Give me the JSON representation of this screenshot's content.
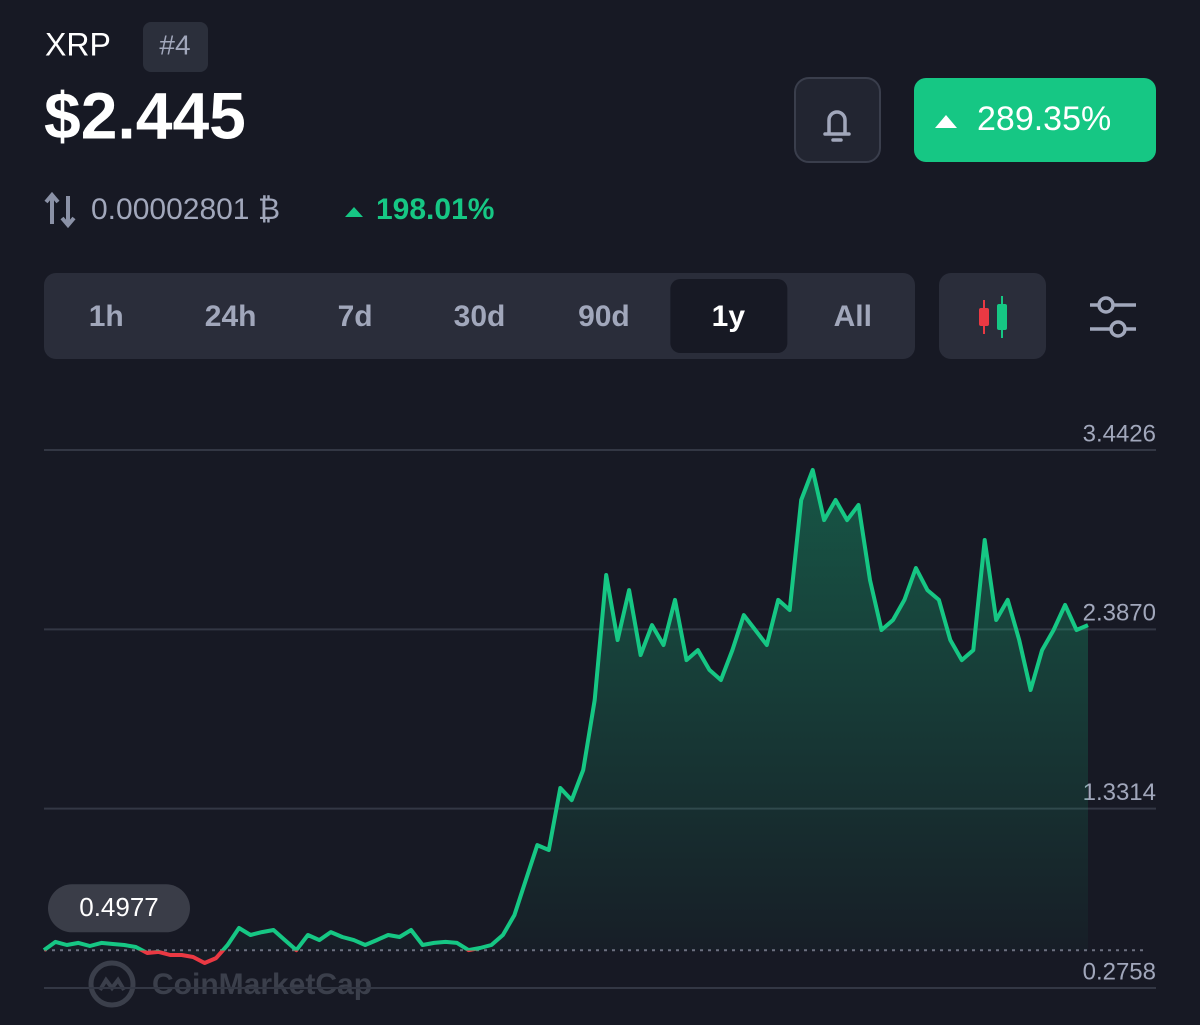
{
  "header": {
    "symbol": "XRP",
    "rank": "#4",
    "price": "$2.445",
    "btc_price": "0.00002801 ₿",
    "btc_change": "198.01%",
    "change": "289.35%"
  },
  "controls": {
    "ranges": [
      "1h",
      "24h",
      "7d",
      "30d",
      "90d",
      "1y",
      "All"
    ],
    "active": "1y"
  },
  "chart_data": {
    "type": "line",
    "watermark": "CoinMarketCap",
    "values": [
      0.499,
      0.547,
      0.529,
      0.541,
      0.523,
      0.541,
      0.535,
      0.529,
      0.517,
      0.482,
      0.488,
      0.47,
      0.47,
      0.458,
      0.423,
      0.452,
      0.529,
      0.629,
      0.588,
      0.605,
      0.617,
      0.558,
      0.499,
      0.588,
      0.558,
      0.605,
      0.576,
      0.558,
      0.529,
      0.558,
      0.588,
      0.576,
      0.617,
      0.529,
      0.541,
      0.547,
      0.541,
      0.499,
      0.511,
      0.529,
      0.588,
      0.705,
      0.911,
      1.117,
      1.088,
      1.453,
      1.382,
      1.559,
      1.971,
      2.707,
      2.324,
      2.618,
      2.236,
      2.412,
      2.295,
      2.56,
      2.206,
      2.265,
      2.148,
      2.089,
      2.265,
      2.471,
      2.383,
      2.295,
      2.56,
      2.501,
      3.148,
      3.325,
      3.03,
      3.148,
      3.03,
      3.119,
      2.677,
      2.383,
      2.442,
      2.56,
      2.748,
      2.618,
      2.56,
      2.324,
      2.206,
      2.265,
      2.913,
      2.442,
      2.56,
      2.324,
      2.03,
      2.265,
      2.383,
      2.53,
      2.383,
      2.412
    ],
    "baseline": 0.4977,
    "up_color": "#16c784",
    "down_color": "#ea3943",
    "ylim": [
      0.2758,
      3.4426
    ],
    "yticks": [
      0.2758,
      1.3314,
      {
        "value": 2.387,
        "label": "2.3870"
      },
      3.4426
    ],
    "grid": true
  }
}
